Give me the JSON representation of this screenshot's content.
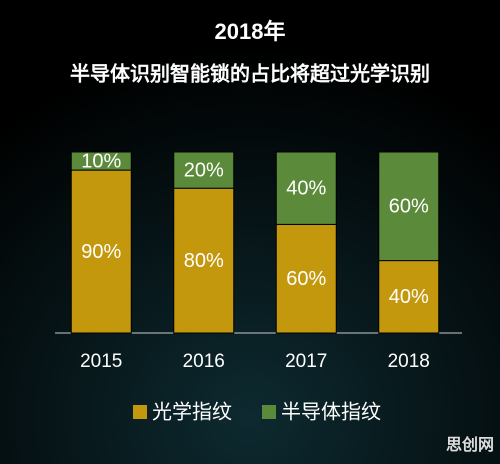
{
  "chart_data": {
    "type": "stacked_bar",
    "title": "2018年",
    "subtitle": "半导体识别智能锁的占比将超过光学识别",
    "categories": [
      "2015",
      "2016",
      "2017",
      "2018"
    ],
    "series": [
      {
        "name": "光学指纹",
        "color": "#c4980d",
        "values": [
          90,
          80,
          60,
          40
        ],
        "value_labels": [
          "90%",
          "80%",
          "60%",
          "40%"
        ]
      },
      {
        "name": "半导体指纹",
        "color": "#5b8a3b",
        "values": [
          10,
          20,
          40,
          60
        ],
        "value_labels": [
          "10%",
          "20%",
          "40%",
          "60%"
        ]
      }
    ],
    "ylim": [
      0,
      100
    ],
    "watermark": "思创网"
  }
}
